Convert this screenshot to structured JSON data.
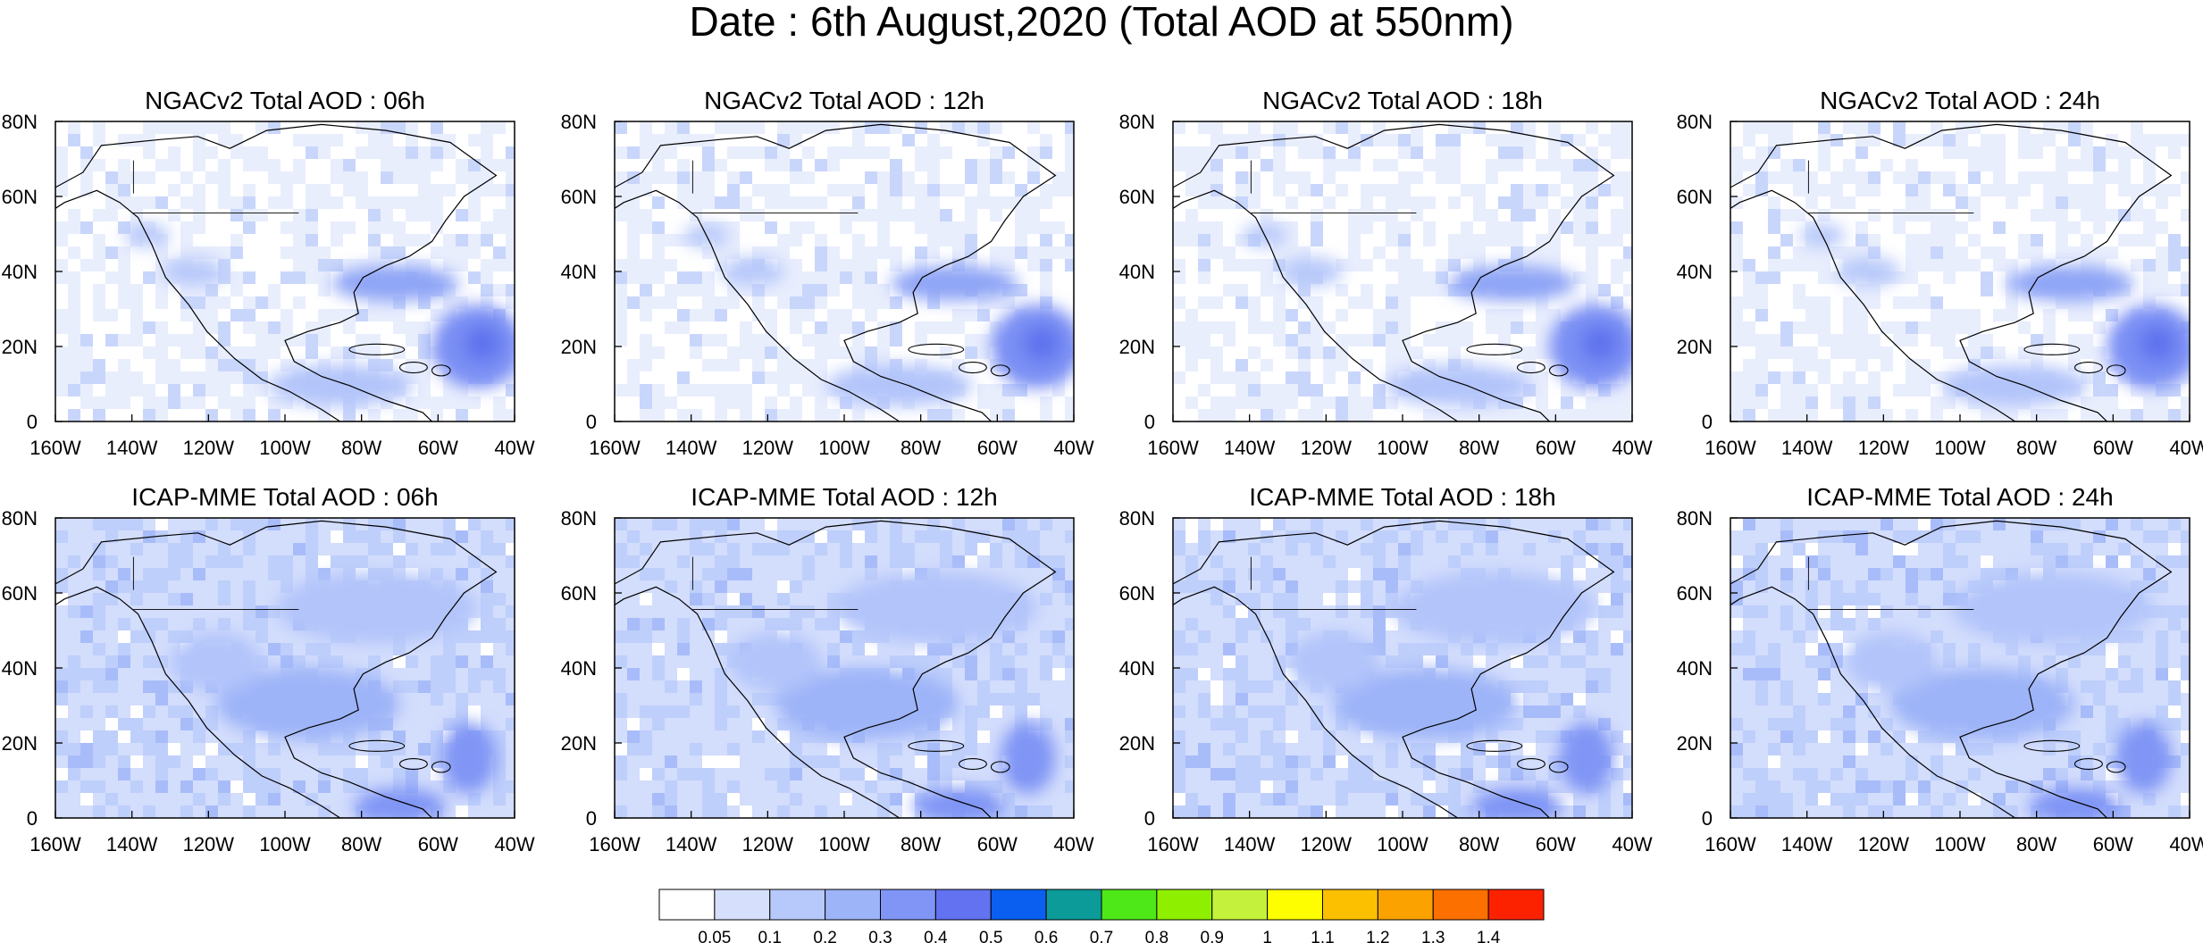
{
  "title": "Date : 6th August,2020 (Total AOD at 550nm)",
  "panels": [
    {
      "title": "NGACv2 Total AOD : 06h",
      "model": "NGACv2",
      "hour": "06h"
    },
    {
      "title": "NGACv2 Total AOD : 12h",
      "model": "NGACv2",
      "hour": "12h"
    },
    {
      "title": "NGACv2 Total AOD : 18h",
      "model": "NGACv2",
      "hour": "18h"
    },
    {
      "title": "NGACv2 Total AOD : 24h",
      "model": "NGACv2",
      "hour": "24h"
    },
    {
      "title": "ICAP-MME Total AOD : 06h",
      "model": "ICAP-MME",
      "hour": "06h"
    },
    {
      "title": "ICAP-MME Total AOD : 12h",
      "model": "ICAP-MME",
      "hour": "12h"
    },
    {
      "title": "ICAP-MME Total AOD : 18h",
      "model": "ICAP-MME",
      "hour": "18h"
    },
    {
      "title": "ICAP-MME Total AOD : 24h",
      "model": "ICAP-MME",
      "hour": "24h"
    }
  ],
  "lon_ticks": [
    "160W",
    "140W",
    "120W",
    "100W",
    "80W",
    "60W",
    "40W"
  ],
  "lat_ticks": [
    "80N",
    "60N",
    "40N",
    "20N",
    "0"
  ],
  "colorbar": {
    "labels": [
      "0.05",
      "0.1",
      "0.2",
      "0.3",
      "0.4",
      "0.5",
      "0.6",
      "0.7",
      "0.8",
      "0.9",
      "1",
      "1.1",
      "1.2",
      "1.3",
      "1.4"
    ],
    "colors": [
      "#ffffff",
      "#d6e0fc",
      "#b7c8fa",
      "#9db4f8",
      "#8095f5",
      "#6272f0",
      "#0a5ff0",
      "#0c9b98",
      "#4ee818",
      "#8ef000",
      "#c4f23c",
      "#fefe00",
      "#fcc000",
      "#fca200",
      "#fc7000",
      "#fc2200"
    ]
  }
}
